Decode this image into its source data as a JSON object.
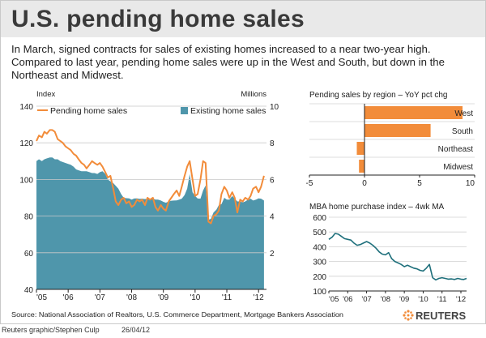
{
  "header": {
    "title": "U.S. pending home sales",
    "subtitle": "In March, signed contracts for sales of existing homes increased to a near two-year high. Compared to last year, pending home sales were up in the West and South, but down in the Northeast and Midwest."
  },
  "footer": {
    "source": "Source: National Association of Realtors, U.S. Commerce Department, Mortgage Bankers Association",
    "credit": "Reuters graphic/Stephen Culp",
    "date": "26/04/12",
    "logo_text": "REUTERS"
  },
  "colors": {
    "pending": "#f28c3a",
    "existing": "#4f96ab",
    "mba": "#1e6f7b",
    "bar": "#f28c3a",
    "title_band": "#e9e9e9"
  },
  "chart_data": [
    {
      "type": "area",
      "title": "",
      "left_unit": "Index",
      "right_unit": "Millions",
      "ylim_left": [
        40,
        140
      ],
      "ylim_right": [
        0,
        10
      ],
      "left_ticks": [
        40,
        60,
        80,
        100,
        120,
        140
      ],
      "right_ticks": [
        2,
        4,
        6,
        8,
        10
      ],
      "x_ticks": [
        "'05",
        "'06",
        "'07",
        "'08",
        "'09",
        "'10",
        "'11",
        "'12"
      ],
      "x_range": [
        2005,
        2012.25
      ],
      "grid": true,
      "legend": "top",
      "series": [
        {
          "name": "Pending home sales",
          "axis": "left",
          "style": "line",
          "x": [
            2005.0,
            2005.08,
            2005.17,
            2005.25,
            2005.33,
            2005.42,
            2005.5,
            2005.58,
            2005.67,
            2005.75,
            2005.83,
            2005.92,
            2006.0,
            2006.08,
            2006.17,
            2006.25,
            2006.33,
            2006.42,
            2006.5,
            2006.58,
            2006.67,
            2006.75,
            2006.83,
            2006.92,
            2007.0,
            2007.08,
            2007.17,
            2007.25,
            2007.33,
            2007.42,
            2007.5,
            2007.58,
            2007.67,
            2007.75,
            2007.83,
            2007.92,
            2008.0,
            2008.08,
            2008.17,
            2008.25,
            2008.33,
            2008.42,
            2008.5,
            2008.58,
            2008.67,
            2008.75,
            2008.83,
            2008.92,
            2009.0,
            2009.08,
            2009.17,
            2009.25,
            2009.33,
            2009.42,
            2009.5,
            2009.58,
            2009.67,
            2009.75,
            2009.83,
            2009.92,
            2010.0,
            2010.08,
            2010.17,
            2010.25,
            2010.33,
            2010.42,
            2010.5,
            2010.58,
            2010.67,
            2010.75,
            2010.83,
            2010.92,
            2011.0,
            2011.08,
            2011.17,
            2011.25,
            2011.33,
            2011.42,
            2011.5,
            2011.58,
            2011.67,
            2011.75,
            2011.83,
            2011.92,
            2012.0,
            2012.08,
            2012.17
          ],
          "values": [
            121,
            124,
            123,
            126,
            125,
            127,
            127,
            126,
            122,
            121,
            120,
            118,
            117,
            116,
            114,
            113,
            111,
            109,
            108,
            106,
            108,
            110,
            109,
            108,
            109,
            107,
            104,
            101,
            102,
            95,
            88,
            86,
            89,
            90,
            87,
            88,
            85,
            86,
            89,
            88,
            89,
            86,
            90,
            89,
            90,
            85,
            83,
            86,
            84,
            83,
            88,
            90,
            92,
            94,
            91,
            96,
            102,
            107,
            110,
            100,
            91,
            92,
            100,
            110,
            109,
            77,
            76,
            80,
            81,
            83,
            92,
            96,
            94,
            90,
            93,
            90,
            82,
            89,
            88,
            90,
            89,
            91,
            95,
            96,
            93,
            96,
            102
          ]
        },
        {
          "name": "Existing home sales",
          "axis": "right",
          "style": "area",
          "x": [
            2005.0,
            2005.08,
            2005.17,
            2005.25,
            2005.33,
            2005.42,
            2005.5,
            2005.58,
            2005.67,
            2005.75,
            2005.83,
            2005.92,
            2006.0,
            2006.08,
            2006.17,
            2006.25,
            2006.33,
            2006.42,
            2006.5,
            2006.58,
            2006.67,
            2006.75,
            2006.83,
            2006.92,
            2007.0,
            2007.08,
            2007.17,
            2007.25,
            2007.33,
            2007.42,
            2007.5,
            2007.58,
            2007.67,
            2007.75,
            2007.83,
            2007.92,
            2008.0,
            2008.08,
            2008.17,
            2008.25,
            2008.33,
            2008.42,
            2008.5,
            2008.58,
            2008.67,
            2008.75,
            2008.83,
            2008.92,
            2009.0,
            2009.08,
            2009.17,
            2009.25,
            2009.33,
            2009.42,
            2009.5,
            2009.58,
            2009.67,
            2009.75,
            2009.83,
            2009.92,
            2010.0,
            2010.08,
            2010.17,
            2010.25,
            2010.33,
            2010.42,
            2010.5,
            2010.58,
            2010.67,
            2010.75,
            2010.83,
            2010.92,
            2011.0,
            2011.08,
            2011.17,
            2011.25,
            2011.33,
            2011.42,
            2011.5,
            2011.58,
            2011.67,
            2011.75,
            2011.83,
            2011.92,
            2012.0,
            2012.08,
            2012.17
          ],
          "values": [
            7.0,
            7.1,
            7.0,
            7.1,
            7.15,
            7.2,
            7.2,
            7.1,
            7.1,
            7.0,
            6.95,
            6.9,
            6.85,
            6.8,
            6.7,
            6.55,
            6.5,
            6.45,
            6.45,
            6.45,
            6.4,
            6.35,
            6.35,
            6.3,
            6.4,
            6.45,
            6.3,
            6.0,
            5.9,
            5.8,
            5.65,
            5.5,
            5.2,
            5.0,
            4.98,
            4.97,
            4.9,
            4.96,
            4.97,
            4.94,
            4.95,
            4.93,
            4.95,
            4.95,
            4.96,
            4.9,
            4.9,
            4.85,
            4.78,
            4.73,
            4.8,
            4.84,
            4.85,
            4.86,
            4.9,
            4.95,
            5.15,
            5.5,
            6.3,
            5.3,
            5.1,
            4.96,
            4.95,
            5.4,
            5.67,
            3.8,
            3.85,
            4.2,
            4.35,
            4.6,
            4.65,
            5.0,
            4.9,
            4.9,
            5.1,
            4.95,
            4.8,
            4.8,
            4.75,
            4.8,
            4.9,
            4.95,
            4.85,
            4.9,
            4.97,
            4.95,
            4.85
          ]
        }
      ]
    },
    {
      "type": "bar",
      "orientation": "horizontal",
      "title": "Pending sales by region – YoY pct chg",
      "categories": [
        "West",
        "South",
        "Northeast",
        "Midwest"
      ],
      "values": [
        8.9,
        6.0,
        -0.7,
        -0.5
      ],
      "xlim": [
        -5,
        10
      ],
      "x_ticks": [
        -5,
        0,
        5,
        10
      ]
    },
    {
      "type": "line",
      "title": "MBA home purchase index – 4wk MA",
      "x_ticks": [
        "'05",
        "'06",
        "'07",
        "'08",
        "'09",
        "'10",
        "'11",
        "'12"
      ],
      "x_range": [
        2005,
        2012.3
      ],
      "ylim": [
        100,
        600
      ],
      "y_ticks": [
        100,
        200,
        300,
        400,
        500,
        600
      ],
      "x": [
        2005.0,
        2005.17,
        2005.33,
        2005.5,
        2005.67,
        2005.83,
        2006.0,
        2006.17,
        2006.33,
        2006.5,
        2006.67,
        2006.83,
        2007.0,
        2007.17,
        2007.33,
        2007.5,
        2007.67,
        2007.83,
        2008.0,
        2008.17,
        2008.33,
        2008.5,
        2008.67,
        2008.83,
        2009.0,
        2009.17,
        2009.33,
        2009.5,
        2009.67,
        2009.83,
        2010.0,
        2010.17,
        2010.33,
        2010.5,
        2010.67,
        2010.83,
        2011.0,
        2011.17,
        2011.33,
        2011.5,
        2011.67,
        2011.83,
        2012.0,
        2012.15,
        2012.3
      ],
      "values": [
        450,
        465,
        490,
        485,
        470,
        455,
        450,
        445,
        425,
        410,
        415,
        425,
        435,
        425,
        410,
        390,
        365,
        350,
        345,
        360,
        320,
        300,
        290,
        280,
        265,
        275,
        265,
        255,
        250,
        240,
        235,
        255,
        280,
        190,
        175,
        185,
        190,
        185,
        180,
        182,
        178,
        185,
        180,
        178,
        185
      ]
    }
  ]
}
